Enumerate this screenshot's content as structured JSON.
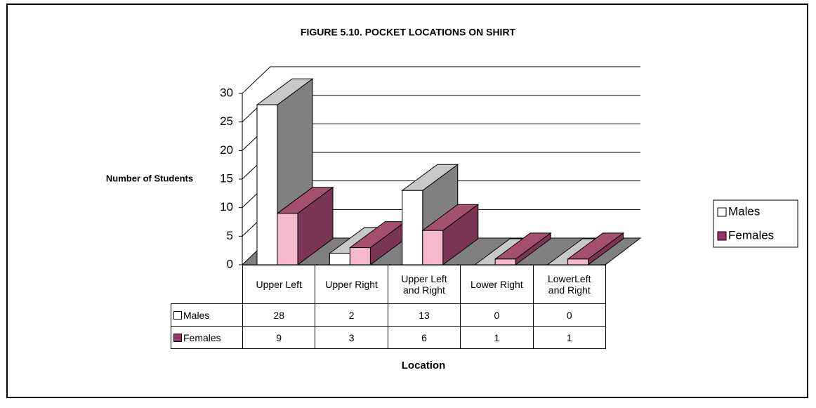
{
  "chart_data": {
    "type": "bar3d",
    "title": "FIGURE 5.10.   POCKET LOCATIONS ON SHIRT",
    "y_label": "Number of Students",
    "x_label": "Location",
    "categories": [
      "Upper Left",
      "Upper Right",
      "Upper Left and Right",
      "Lower Right",
      "LowerLeft and Right"
    ],
    "series": [
      {
        "name": "Males",
        "color": "#ffffff",
        "values": [
          28,
          2,
          13,
          0,
          0
        ]
      },
      {
        "name": "Females",
        "color": "#993366",
        "values": [
          9,
          3,
          6,
          1,
          1
        ]
      }
    ],
    "ylim": [
      0,
      30
    ],
    "yticks": [
      0,
      5,
      10,
      15,
      20,
      25,
      30
    ],
    "grid": true,
    "legend": "right"
  }
}
